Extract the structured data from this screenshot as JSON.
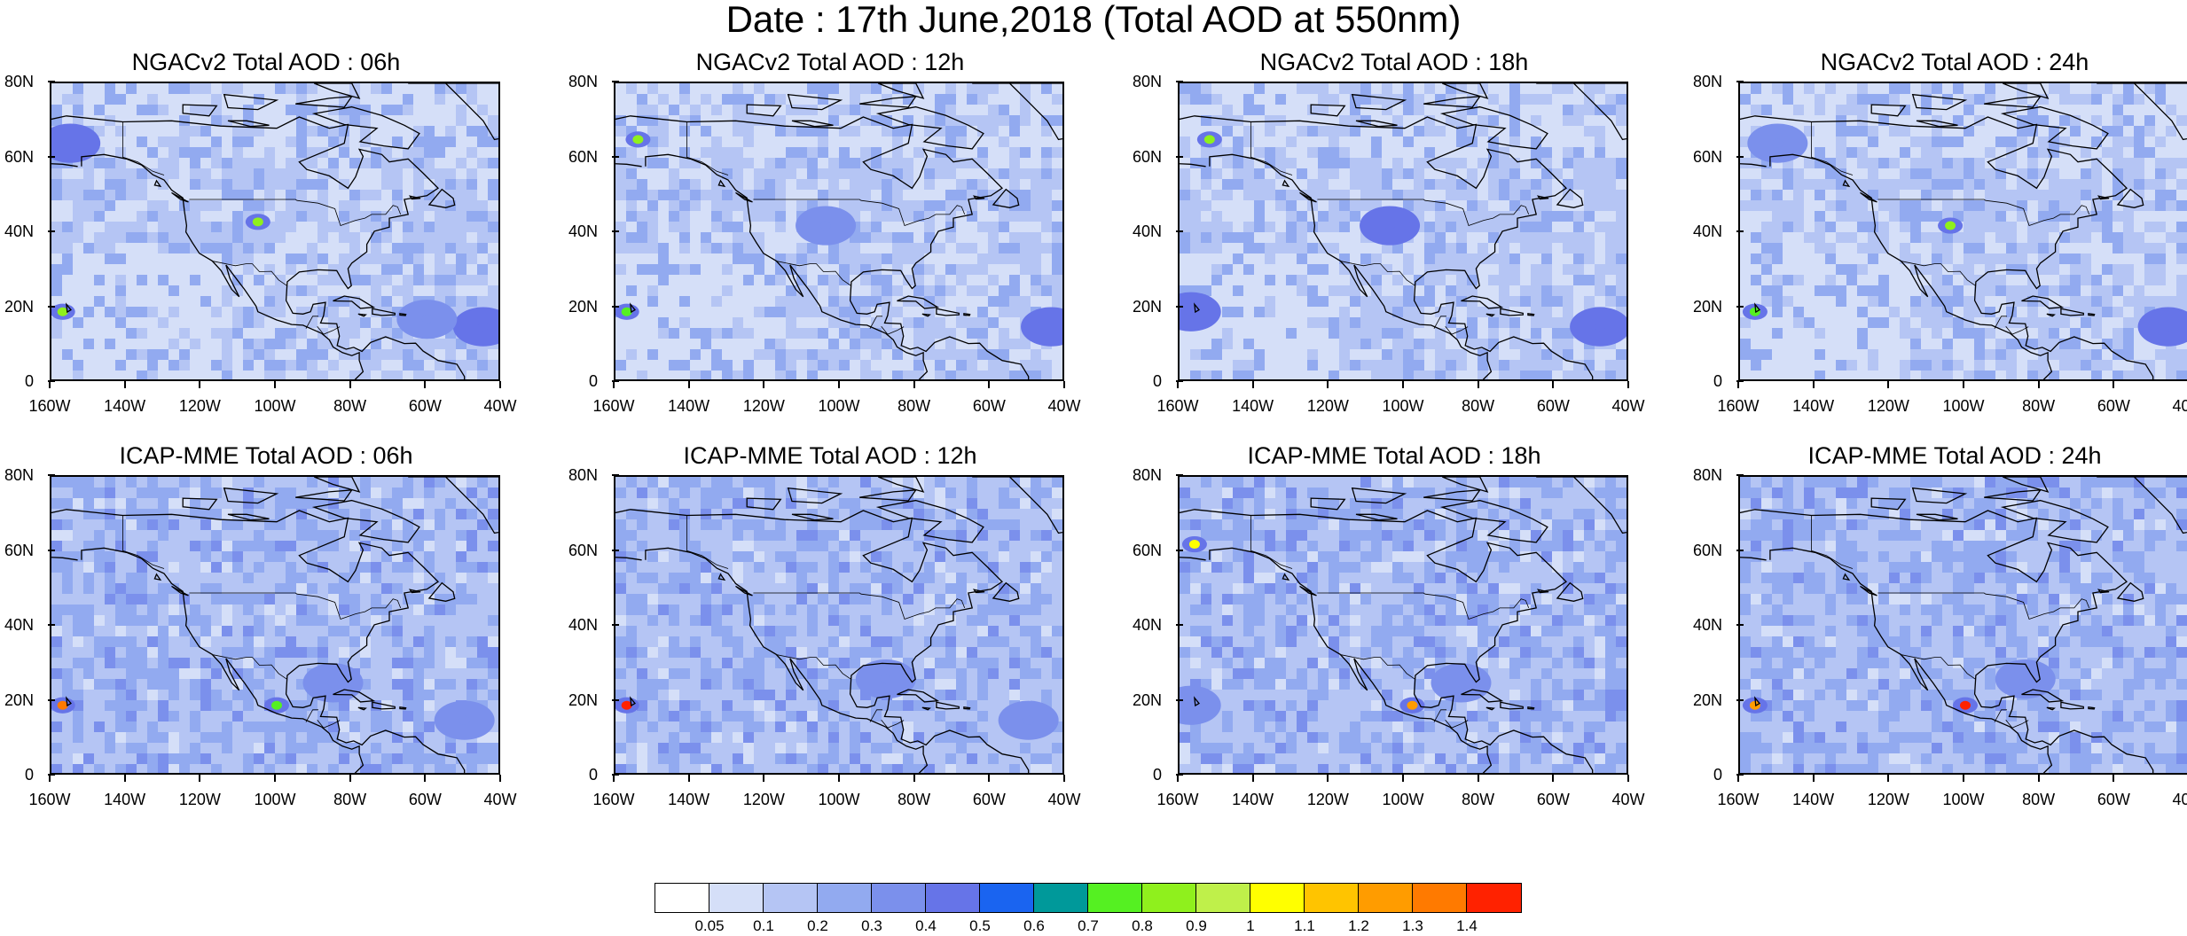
{
  "title": "Date : 17th June,2018 (Total AOD at 550nm)",
  "panels": [
    {
      "title": "NGACv2 Total AOD : 06h"
    },
    {
      "title": "NGACv2 Total AOD : 12h"
    },
    {
      "title": "NGACv2 Total AOD : 18h"
    },
    {
      "title": "NGACv2 Total AOD : 24h"
    },
    {
      "title": "ICAP-MME Total AOD : 06h"
    },
    {
      "title": "ICAP-MME Total AOD : 12h"
    },
    {
      "title": "ICAP-MME Total AOD : 18h"
    },
    {
      "title": "ICAP-MME Total AOD : 24h"
    }
  ],
  "axes": {
    "y_ticks": [
      "80N",
      "60N",
      "40N",
      "20N",
      "0"
    ],
    "x_ticks": [
      "160W",
      "140W",
      "120W",
      "100W",
      "80W",
      "60W",
      "40W"
    ]
  },
  "colorbar": {
    "labels": [
      "0.05",
      "0.1",
      "0.2",
      "0.3",
      "0.4",
      "0.5",
      "0.6",
      "0.7",
      "0.8",
      "0.9",
      "1",
      "1.1",
      "1.2",
      "1.3",
      "1.4"
    ],
    "colors": [
      "#ffffff",
      "#d5dff8",
      "#b5c5f4",
      "#92aaf0",
      "#7b90ec",
      "#6674e8",
      "#1a64f0",
      "#00999a",
      "#55f022",
      "#8ff01d",
      "#bff04a",
      "#ffff00",
      "#ffc400",
      "#ff9c00",
      "#ff7a00",
      "#ff2200"
    ]
  },
  "chart_data": {
    "type": "heatmap",
    "variable": "Total AOD at 550nm",
    "date": "17th June,2018",
    "lon_range": [
      -160,
      -40
    ],
    "lat_range": [
      0,
      80
    ],
    "panels": [
      {
        "model": "NGACv2",
        "lead": "06h",
        "features": [
          {
            "lon": -157,
            "lat": 19,
            "aod": 0.85
          },
          {
            "lon": -155,
            "lat": 64,
            "aod": 0.45
          },
          {
            "lon": -105,
            "lat": 43,
            "aod": 0.8
          },
          {
            "lon": -45,
            "lat": 15,
            "aod": 0.45
          },
          {
            "lon": -60,
            "lat": 17,
            "aod": 0.3
          }
        ]
      },
      {
        "model": "NGACv2",
        "lead": "12h",
        "features": [
          {
            "lon": -157,
            "lat": 19,
            "aod": 0.75
          },
          {
            "lon": -154,
            "lat": 65,
            "aod": 0.8
          },
          {
            "lon": -104,
            "lat": 42,
            "aod": 0.3
          },
          {
            "lon": -44,
            "lat": 15,
            "aod": 0.45
          }
        ]
      },
      {
        "model": "NGACv2",
        "lead": "18h",
        "features": [
          {
            "lon": -157,
            "lat": 19,
            "aod": 0.45
          },
          {
            "lon": -152,
            "lat": 65,
            "aod": 0.85
          },
          {
            "lon": -104,
            "lat": 42,
            "aod": 0.45
          },
          {
            "lon": -48,
            "lat": 15,
            "aod": 0.45
          }
        ]
      },
      {
        "model": "NGACv2",
        "lead": "24h",
        "features": [
          {
            "lon": -156,
            "lat": 19,
            "aod": 0.75
          },
          {
            "lon": -150,
            "lat": 64,
            "aod": 0.35
          },
          {
            "lon": -104,
            "lat": 42,
            "aod": 0.8
          },
          {
            "lon": -46,
            "lat": 15,
            "aod": 0.45
          }
        ]
      },
      {
        "model": "ICAP-MME",
        "lead": "06h",
        "features": [
          {
            "lon": -157,
            "lat": 19,
            "aod": 1.3
          },
          {
            "lon": -100,
            "lat": 19,
            "aod": 0.7
          },
          {
            "lon": -85,
            "lat": 25,
            "aod": 0.35
          },
          {
            "lon": -50,
            "lat": 15,
            "aod": 0.35
          }
        ]
      },
      {
        "model": "ICAP-MME",
        "lead": "12h",
        "features": [
          {
            "lon": -157,
            "lat": 19,
            "aod": 1.4
          },
          {
            "lon": -88,
            "lat": 26,
            "aod": 0.35
          },
          {
            "lon": -50,
            "lat": 15,
            "aod": 0.3
          }
        ]
      },
      {
        "model": "ICAP-MME",
        "lead": "18h",
        "features": [
          {
            "lon": -157,
            "lat": 19,
            "aod": 0.35
          },
          {
            "lon": -156,
            "lat": 62,
            "aod": 1.0
          },
          {
            "lon": -98,
            "lat": 19,
            "aod": 1.2
          },
          {
            "lon": -85,
            "lat": 25,
            "aod": 0.35
          }
        ]
      },
      {
        "model": "ICAP-MME",
        "lead": "24h",
        "features": [
          {
            "lon": -156,
            "lat": 19,
            "aod": 1.2
          },
          {
            "lon": -100,
            "lat": 19,
            "aod": 1.4
          },
          {
            "lon": -84,
            "lat": 26,
            "aod": 0.3
          }
        ]
      }
    ]
  }
}
